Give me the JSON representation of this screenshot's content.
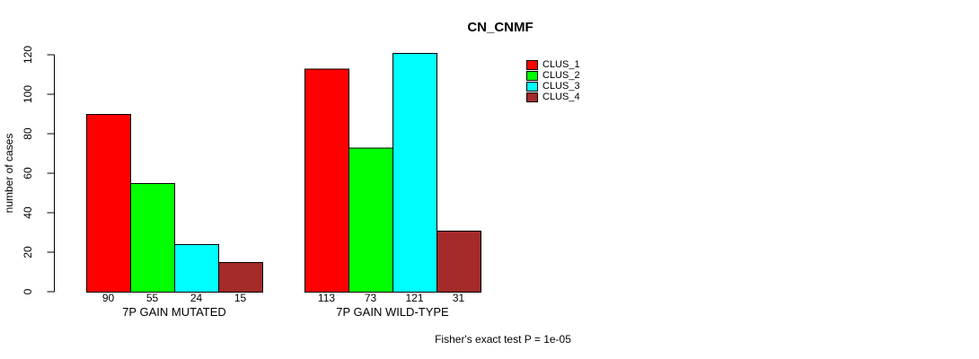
{
  "chart_data": {
    "type": "bar",
    "title": "CN_CNMF",
    "ylabel": "number of cases",
    "ylim": [
      0,
      120
    ],
    "yticks": [
      0,
      20,
      40,
      60,
      80,
      100,
      120
    ],
    "grid": false,
    "legend_position": "right",
    "categories": [
      "7P GAIN MUTATED",
      "7P GAIN WILD-TYPE"
    ],
    "groups": [
      {
        "label": "7P GAIN MUTATED",
        "values": [
          90,
          55,
          24,
          15
        ]
      },
      {
        "label": "7P GAIN WILD-TYPE",
        "values": [
          113,
          73,
          121,
          31
        ]
      }
    ],
    "series": [
      {
        "name": "CLUS_1",
        "color": "#FF0000"
      },
      {
        "name": "CLUS_2",
        "color": "#00FF00"
      },
      {
        "name": "CLUS_3",
        "color": "#00FFFF"
      },
      {
        "name": "CLUS_4",
        "color": "#A52A2A"
      }
    ],
    "annotation": "Fisher's exact test P = 1e-05",
    "axis_color": "#000000",
    "background": "#FFFFFF"
  }
}
